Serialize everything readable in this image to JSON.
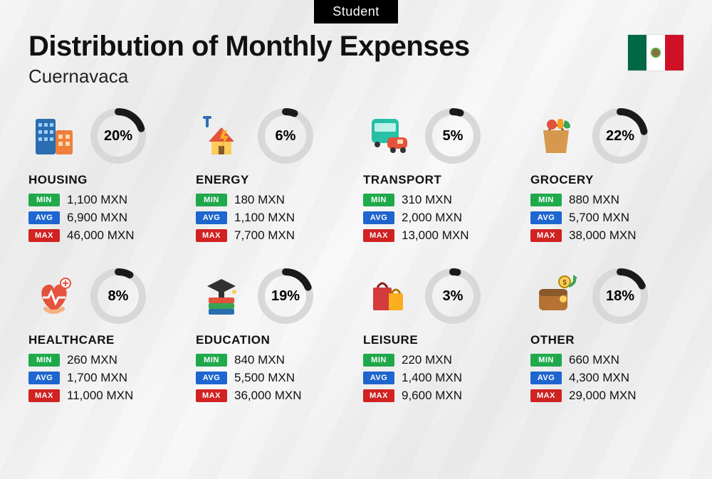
{
  "badge": "Student",
  "title": "Distribution of Monthly Expenses",
  "subtitle": "Cuernavaca",
  "flag": {
    "left": "#006847",
    "mid": "#ffffff",
    "right": "#ce1126"
  },
  "labels": {
    "min": "MIN",
    "avg": "AVG",
    "max": "MAX"
  },
  "colors": {
    "min": "#1fab4c",
    "avg": "#1e66d0",
    "max": "#d22222",
    "donut_bg": "#d8d8d8",
    "donut_fg": "#1a1a1a",
    "background": "#f2f2f2",
    "text": "#111111"
  },
  "donut": {
    "radius": 34,
    "stroke": 10,
    "size": 80
  },
  "categories": [
    {
      "key": "housing",
      "name": "HOUSING",
      "pct": 20,
      "pct_label": "20%",
      "min": "1,100 MXN",
      "avg": "6,900 MXN",
      "max": "46,000 MXN",
      "icon": "housing-icon"
    },
    {
      "key": "energy",
      "name": "ENERGY",
      "pct": 6,
      "pct_label": "6%",
      "min": "180 MXN",
      "avg": "1,100 MXN",
      "max": "7,700 MXN",
      "icon": "energy-icon"
    },
    {
      "key": "transport",
      "name": "TRANSPORT",
      "pct": 5,
      "pct_label": "5%",
      "min": "310 MXN",
      "avg": "2,000 MXN",
      "max": "13,000 MXN",
      "icon": "transport-icon"
    },
    {
      "key": "grocery",
      "name": "GROCERY",
      "pct": 22,
      "pct_label": "22%",
      "min": "880 MXN",
      "avg": "5,700 MXN",
      "max": "38,000 MXN",
      "icon": "grocery-icon"
    },
    {
      "key": "healthcare",
      "name": "HEALTHCARE",
      "pct": 8,
      "pct_label": "8%",
      "min": "260 MXN",
      "avg": "1,700 MXN",
      "max": "11,000 MXN",
      "icon": "healthcare-icon"
    },
    {
      "key": "education",
      "name": "EDUCATION",
      "pct": 19,
      "pct_label": "19%",
      "min": "840 MXN",
      "avg": "5,500 MXN",
      "max": "36,000 MXN",
      "icon": "education-icon"
    },
    {
      "key": "leisure",
      "name": "LEISURE",
      "pct": 3,
      "pct_label": "3%",
      "min": "220 MXN",
      "avg": "1,400 MXN",
      "max": "9,600 MXN",
      "icon": "leisure-icon"
    },
    {
      "key": "other",
      "name": "OTHER",
      "pct": 18,
      "pct_label": "18%",
      "min": "660 MXN",
      "avg": "4,300 MXN",
      "max": "29,000 MXN",
      "icon": "other-icon"
    }
  ],
  "typography": {
    "title_fontsize": 40,
    "subtitle_fontsize": 26,
    "pct_fontsize": 20,
    "cat_fontsize": 17,
    "val_fontsize": 17
  }
}
